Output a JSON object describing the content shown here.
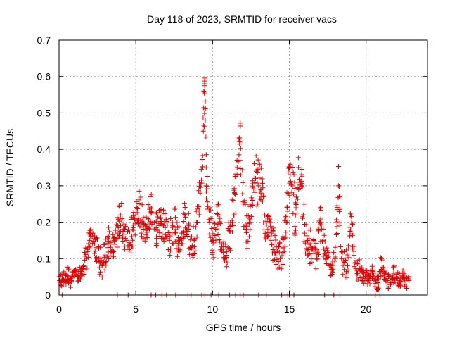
{
  "chart_data": {
    "type": "scatter",
    "title": "Day 118 of 2023, SRMTID for receiver vacs",
    "xlabel": "GPS time / hours",
    "ylabel": "SRMTID / TECUs",
    "xlim": [
      0,
      24
    ],
    "ylim": [
      0,
      0.7
    ],
    "xticks": [
      0,
      5,
      10,
      15,
      20
    ],
    "xtick_labels": [
      "0",
      "5",
      "10",
      "15",
      "20"
    ],
    "yticks": [
      0,
      0.1,
      0.2,
      0.3,
      0.4,
      0.5,
      0.6,
      0.7
    ],
    "ytick_labels": [
      "0",
      "0.1",
      "0.2",
      "0.3",
      "0.4",
      "0.5",
      "0.6",
      "0.7"
    ],
    "grid": true,
    "marker": "+",
    "point_color": "#e00000",
    "series": [
      {
        "name": "SRMTID",
        "x": [
          0.0,
          0.2,
          0.4,
          0.6,
          0.8,
          1.0,
          1.2,
          1.4,
          1.6,
          1.8,
          2.0,
          2.2,
          2.4,
          2.6,
          2.8,
          3.0,
          3.2,
          3.4,
          3.6,
          3.8,
          4.0,
          4.2,
          4.4,
          4.6,
          4.8,
          5.0,
          5.2,
          5.4,
          5.6,
          5.8,
          6.0,
          6.2,
          6.4,
          6.6,
          6.8,
          7.0,
          7.2,
          7.4,
          7.6,
          7.8,
          8.0,
          8.2,
          8.4,
          8.6,
          8.8,
          9.0,
          9.2,
          9.4,
          9.5,
          9.6,
          9.8,
          10.0,
          10.2,
          10.4,
          10.6,
          10.8,
          11.0,
          11.2,
          11.4,
          11.6,
          11.8,
          12.0,
          12.2,
          12.4,
          12.6,
          12.8,
          13.0,
          13.2,
          13.4,
          13.6,
          13.8,
          14.0,
          14.2,
          14.4,
          14.6,
          14.8,
          15.0,
          15.2,
          15.4,
          15.6,
          15.8,
          16.0,
          16.2,
          16.4,
          16.6,
          16.8,
          17.0,
          17.2,
          17.4,
          17.6,
          17.8,
          18.0,
          18.2,
          18.4,
          18.6,
          18.8,
          19.0,
          19.2,
          19.4,
          19.6,
          19.8,
          20.0,
          20.2,
          20.4,
          20.6,
          20.8,
          21.0,
          21.2,
          21.4,
          21.6,
          21.8,
          22.0,
          22.2,
          22.4,
          22.6,
          22.8
        ],
        "y": [
          0.05,
          0.04,
          0.06,
          0.05,
          0.04,
          0.06,
          0.05,
          0.06,
          0.08,
          0.1,
          0.15,
          0.17,
          0.13,
          0.1,
          0.08,
          0.11,
          0.14,
          0.12,
          0.15,
          0.17,
          0.22,
          0.18,
          0.15,
          0.14,
          0.18,
          0.22,
          0.25,
          0.2,
          0.19,
          0.21,
          0.23,
          0.2,
          0.18,
          0.21,
          0.19,
          0.16,
          0.15,
          0.19,
          0.18,
          0.14,
          0.17,
          0.22,
          0.18,
          0.13,
          0.15,
          0.2,
          0.28,
          0.45,
          0.58,
          0.3,
          0.2,
          0.15,
          0.18,
          0.22,
          0.12,
          0.1,
          0.13,
          0.19,
          0.22,
          0.35,
          0.42,
          0.25,
          0.18,
          0.2,
          0.26,
          0.32,
          0.3,
          0.28,
          0.22,
          0.18,
          0.15,
          0.14,
          0.12,
          0.1,
          0.13,
          0.2,
          0.35,
          0.3,
          0.22,
          0.35,
          0.3,
          0.17,
          0.15,
          0.13,
          0.12,
          0.1,
          0.2,
          0.15,
          0.1,
          0.08,
          0.07,
          0.1,
          0.3,
          0.1,
          0.09,
          0.08,
          0.22,
          0.12,
          0.06,
          0.07,
          0.05,
          0.05,
          0.04,
          0.06,
          0.04,
          0.03,
          0.1,
          0.05,
          0.04,
          0.03,
          0.06,
          0.05,
          0.04,
          0.05,
          0.03,
          0.04
        ],
        "amplitude": [
          0.02,
          0.02,
          0.03,
          0.03,
          0.02,
          0.02,
          0.02,
          0.02,
          0.03,
          0.04,
          0.03,
          0.03,
          0.04,
          0.04,
          0.04,
          0.04,
          0.05,
          0.04,
          0.04,
          0.05,
          0.05,
          0.05,
          0.05,
          0.05,
          0.05,
          0.05,
          0.05,
          0.05,
          0.05,
          0.05,
          0.05,
          0.05,
          0.05,
          0.05,
          0.05,
          0.05,
          0.05,
          0.05,
          0.06,
          0.05,
          0.05,
          0.06,
          0.06,
          0.04,
          0.05,
          0.06,
          0.06,
          0.08,
          0.05,
          0.08,
          0.06,
          0.06,
          0.06,
          0.05,
          0.05,
          0.05,
          0.06,
          0.06,
          0.07,
          0.08,
          0.07,
          0.07,
          0.07,
          0.07,
          0.07,
          0.07,
          0.07,
          0.07,
          0.07,
          0.05,
          0.05,
          0.05,
          0.05,
          0.04,
          0.05,
          0.06,
          0.08,
          0.08,
          0.07,
          0.06,
          0.07,
          0.05,
          0.05,
          0.05,
          0.04,
          0.04,
          0.05,
          0.05,
          0.04,
          0.03,
          0.03,
          0.04,
          0.06,
          0.04,
          0.04,
          0.04,
          0.05,
          0.04,
          0.03,
          0.03,
          0.02,
          0.02,
          0.02,
          0.02,
          0.02,
          0.02,
          0.04,
          0.02,
          0.02,
          0.02,
          0.03,
          0.02,
          0.02,
          0.02,
          0.02,
          0.02
        ]
      }
    ],
    "zero_valued_points_at_x": [
      0.2,
      3.8,
      4.5,
      6.0,
      6.3,
      6.7,
      7.0,
      7.6,
      8.4,
      8.6,
      9.3,
      9.5,
      9.9,
      10.4,
      11.1,
      11.5,
      11.8,
      12.0,
      13.0,
      13.5,
      14.5,
      14.9,
      15.0,
      15.3,
      17.3,
      17.9,
      18.3,
      20.6,
      20.9
    ]
  }
}
